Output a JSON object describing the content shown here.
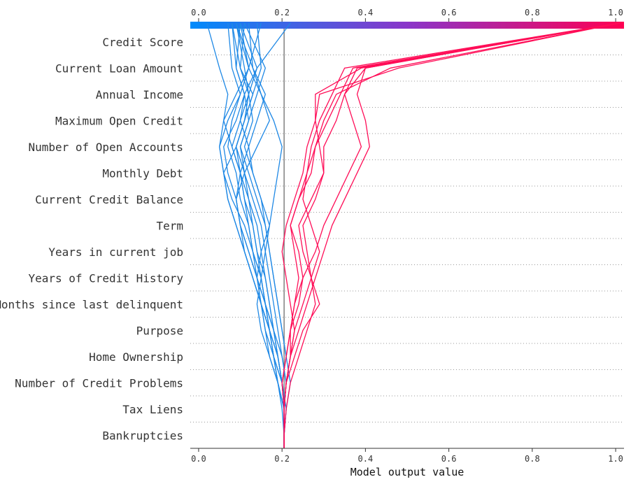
{
  "chart_data": {
    "type": "line",
    "xlabel": "Model output value",
    "xlim": [
      -0.02,
      1.02
    ],
    "x_ticks": [
      0.0,
      0.2,
      0.4,
      0.6,
      0.8,
      1.0
    ],
    "x_tick_labels": [
      "0.0",
      "0.2",
      "0.4",
      "0.6",
      "0.8",
      "1.0"
    ],
    "colorbar": {
      "range": [
        0.0,
        1.0
      ],
      "tick_labels": [
        "0.0",
        "0.2",
        "0.4",
        "0.6",
        "0.8",
        "1.0"
      ],
      "colors": [
        "#008bfb",
        "#ff0052"
      ]
    },
    "base_value": 0.205,
    "colors": {
      "low": "#1e88e5",
      "high": "#ff0d57",
      "base_line": "#808080",
      "grid": "#999999"
    },
    "grid": "dotted-horizontal",
    "features": [
      "Credit Score",
      "Current Loan Amount",
      "Annual Income",
      "Maximum Open Credit",
      "Number of Open Accounts",
      "Monthly Debt",
      "Current Credit Balance",
      "Term",
      "Years in current job",
      "Years of Credit History",
      "Months since last delinquent",
      "Purpose",
      "Home Ownership",
      "Number of Credit Problems",
      "Tax Liens",
      "Bankruptcies"
    ],
    "series_note_levels": "each series lists cumulative model output from base level (bottom) upward through each feature row, ending at the top",
    "series": [
      {
        "group": "low",
        "values": [
          0.205,
          0.205,
          0.205,
          0.2,
          0.19,
          0.18,
          0.17,
          0.16,
          0.15,
          0.14,
          0.12,
          0.1,
          0.08,
          0.06,
          0.07,
          0.05,
          0.02
        ]
      },
      {
        "group": "low",
        "values": [
          0.205,
          0.205,
          0.205,
          0.21,
          0.2,
          0.19,
          0.18,
          0.17,
          0.16,
          0.15,
          0.13,
          0.11,
          0.09,
          0.11,
          0.13,
          0.1,
          0.08
        ]
      },
      {
        "group": "low",
        "values": [
          0.205,
          0.205,
          0.205,
          0.19,
          0.18,
          0.17,
          0.15,
          0.14,
          0.13,
          0.11,
          0.08,
          0.06,
          0.05,
          0.06,
          0.09,
          0.12,
          0.09
        ]
      },
      {
        "group": "low",
        "values": [
          0.205,
          0.205,
          0.21,
          0.22,
          0.21,
          0.2,
          0.19,
          0.18,
          0.17,
          0.16,
          0.14,
          0.12,
          0.1,
          0.12,
          0.14,
          0.16,
          0.11
        ]
      },
      {
        "group": "low",
        "values": [
          0.205,
          0.205,
          0.205,
          0.2,
          0.18,
          0.17,
          0.16,
          0.15,
          0.13,
          0.12,
          0.1,
          0.09,
          0.07,
          0.08,
          0.1,
          0.08,
          0.07
        ]
      },
      {
        "group": "low",
        "values": [
          0.205,
          0.205,
          0.2,
          0.19,
          0.17,
          0.15,
          0.14,
          0.15,
          0.16,
          0.17,
          0.15,
          0.13,
          0.11,
          0.13,
          0.12,
          0.14,
          0.1
        ]
      },
      {
        "group": "low",
        "values": [
          0.205,
          0.205,
          0.205,
          0.21,
          0.2,
          0.18,
          0.16,
          0.14,
          0.12,
          0.1,
          0.09,
          0.11,
          0.14,
          0.17,
          0.15,
          0.13,
          0.12
        ]
      },
      {
        "group": "low",
        "values": [
          0.205,
          0.205,
          0.205,
          0.19,
          0.18,
          0.16,
          0.15,
          0.13,
          0.11,
          0.09,
          0.07,
          0.06,
          0.09,
          0.11,
          0.13,
          0.15,
          0.14
        ]
      },
      {
        "group": "low",
        "values": [
          0.205,
          0.205,
          0.21,
          0.2,
          0.19,
          0.18,
          0.16,
          0.14,
          0.12,
          0.1,
          0.09,
          0.07,
          0.06,
          0.09,
          0.11,
          0.09,
          0.1
        ]
      },
      {
        "group": "low",
        "values": [
          0.205,
          0.205,
          0.205,
          0.2,
          0.19,
          0.17,
          0.15,
          0.13,
          0.11,
          0.09,
          0.07,
          0.06,
          0.05,
          0.07,
          0.1,
          0.12,
          0.15
        ]
      },
      {
        "group": "low",
        "values": [
          0.205,
          0.205,
          0.205,
          0.2,
          0.18,
          0.17,
          0.16,
          0.15,
          0.14,
          0.13,
          0.12,
          0.11,
          0.1,
          0.12,
          0.11,
          0.14,
          0.22
        ]
      },
      {
        "group": "low",
        "values": [
          0.205,
          0.205,
          0.21,
          0.2,
          0.19,
          0.17,
          0.15,
          0.13,
          0.11,
          0.1,
          0.09,
          0.1,
          0.12,
          0.14,
          0.16,
          0.13,
          0.09
        ]
      },
      {
        "group": "low",
        "values": [
          0.205,
          0.205,
          0.205,
          0.19,
          0.17,
          0.16,
          0.15,
          0.14,
          0.15,
          0.17,
          0.18,
          0.19,
          0.2,
          0.18,
          0.15,
          0.12,
          0.1
        ]
      },
      {
        "group": "low",
        "values": [
          0.205,
          0.205,
          0.205,
          0.2,
          0.21,
          0.2,
          0.19,
          0.18,
          0.17,
          0.16,
          0.15,
          0.13,
          0.12,
          0.1,
          0.11,
          0.09,
          0.08
        ]
      },
      {
        "group": "low",
        "values": [
          0.205,
          0.205,
          0.205,
          0.19,
          0.18,
          0.17,
          0.16,
          0.15,
          0.13,
          0.12,
          0.11,
          0.1,
          0.09,
          0.11,
          0.12,
          0.1,
          0.11
        ]
      },
      {
        "group": "low",
        "values": [
          0.205,
          0.205,
          0.205,
          0.2,
          0.19,
          0.18,
          0.17,
          0.16,
          0.14,
          0.13,
          0.11,
          0.1,
          0.08,
          0.1,
          0.12,
          0.11,
          0.09
        ]
      },
      {
        "group": "high",
        "values": [
          0.205,
          0.205,
          0.205,
          0.21,
          0.22,
          0.24,
          0.26,
          0.28,
          0.3,
          0.32,
          0.35,
          0.38,
          0.41,
          0.4,
          0.38,
          0.4,
          1.01
        ]
      },
      {
        "group": "high",
        "values": [
          0.205,
          0.205,
          0.21,
          0.22,
          0.24,
          0.26,
          0.28,
          0.27,
          0.25,
          0.24,
          0.27,
          0.3,
          0.29,
          0.28,
          0.28,
          0.39,
          1.01
        ]
      },
      {
        "group": "high",
        "values": [
          0.205,
          0.205,
          0.205,
          0.21,
          0.23,
          0.25,
          0.29,
          0.27,
          0.26,
          0.25,
          0.28,
          0.3,
          0.3,
          0.33,
          0.35,
          0.4,
          1.01
        ]
      },
      {
        "group": "high",
        "values": [
          0.205,
          0.205,
          0.205,
          0.2,
          0.21,
          0.22,
          0.23,
          0.24,
          0.23,
          0.22,
          0.24,
          0.27,
          0.28,
          0.3,
          0.33,
          0.46,
          1.01
        ]
      },
      {
        "group": "high",
        "values": [
          0.205,
          0.205,
          0.205,
          0.21,
          0.22,
          0.23,
          0.22,
          0.21,
          0.2,
          0.21,
          0.23,
          0.25,
          0.26,
          0.28,
          0.29,
          0.48,
          1.01
        ]
      },
      {
        "group": "high",
        "values": [
          0.205,
          0.205,
          0.205,
          0.2,
          0.21,
          0.22,
          0.24,
          0.25,
          0.24,
          0.22,
          0.24,
          0.26,
          0.28,
          0.31,
          0.34,
          0.37,
          1.01
        ]
      },
      {
        "group": "high",
        "values": [
          0.205,
          0.205,
          0.205,
          0.21,
          0.22,
          0.23,
          0.25,
          0.27,
          0.29,
          0.27,
          0.25,
          0.26,
          0.27,
          0.29,
          0.32,
          0.35,
          1.01
        ]
      },
      {
        "group": "high",
        "values": [
          0.205,
          0.205,
          0.205,
          0.21,
          0.22,
          0.22,
          0.23,
          0.25,
          0.28,
          0.3,
          0.33,
          0.36,
          0.39,
          0.37,
          0.35,
          0.38,
          1.01
        ]
      }
    ]
  }
}
